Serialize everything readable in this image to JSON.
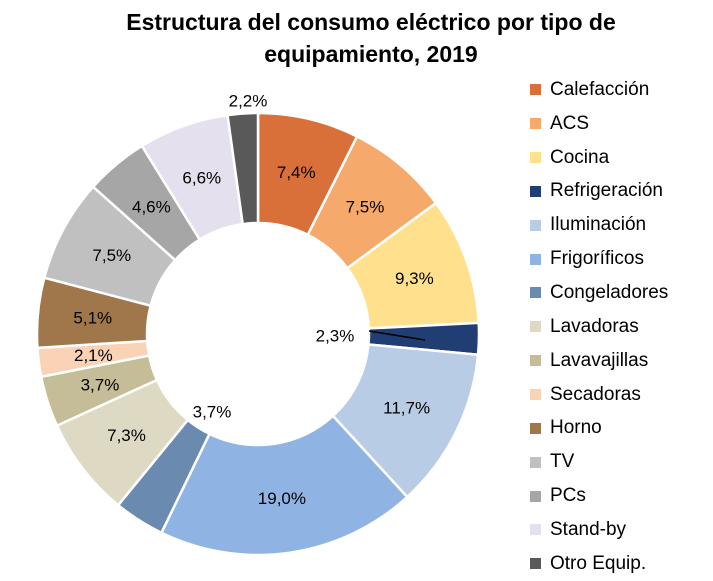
{
  "chart_data": {
    "type": "pie",
    "title": "Estructura del consumo eléctrico por tipo de equipamiento, 2019",
    "title_lines": [
      "Estructura del consumo eléctrico por tipo de",
      "equipamiento, 2019"
    ],
    "donut": true,
    "legend_position": "right",
    "slices": [
      {
        "name": "Calefacción",
        "value": 7.4,
        "label": "7,4%",
        "color": "#D9703A"
      },
      {
        "name": "ACS",
        "value": 7.5,
        "label": "7,5%",
        "color": "#F5A96A"
      },
      {
        "name": "Cocina",
        "value": 9.3,
        "label": "9,3%",
        "color": "#FFE08C"
      },
      {
        "name": "Refrigeración",
        "value": 2.3,
        "label": "2,3%",
        "color": "#203E74"
      },
      {
        "name": "Iluminación",
        "value": 11.7,
        "label": "11,7%",
        "color": "#B8CDE5"
      },
      {
        "name": "Frigoríficos",
        "value": 19.0,
        "label": "19,0%",
        "color": "#8FB4E3"
      },
      {
        "name": "Congeladores",
        "value": 3.7,
        "label": "3,7%",
        "color": "#6A8AB0"
      },
      {
        "name": "Lavadoras",
        "value": 7.3,
        "label": "7,3%",
        "color": "#DDD9C3"
      },
      {
        "name": "Lavavajillas",
        "value": 3.7,
        "label": "3,7%",
        "color": "#C4BD97"
      },
      {
        "name": "Secadoras",
        "value": 2.1,
        "label": "2,1%",
        "color": "#FAD3B6"
      },
      {
        "name": "Horno",
        "value": 5.1,
        "label": "5,1%",
        "color": "#A0774A"
      },
      {
        "name": "TV",
        "value": 7.5,
        "label": "7,5%",
        "color": "#C0C0C0"
      },
      {
        "name": "PCs",
        "value": 4.6,
        "label": "4,6%",
        "color": "#A6A6A6"
      },
      {
        "name": "Stand-by",
        "value": 6.6,
        "label": "6,6%",
        "color": "#E4E0EE"
      },
      {
        "name": "Otro Equip.",
        "value": 2.2,
        "label": "2,2%",
        "color": "#595959"
      }
    ]
  }
}
